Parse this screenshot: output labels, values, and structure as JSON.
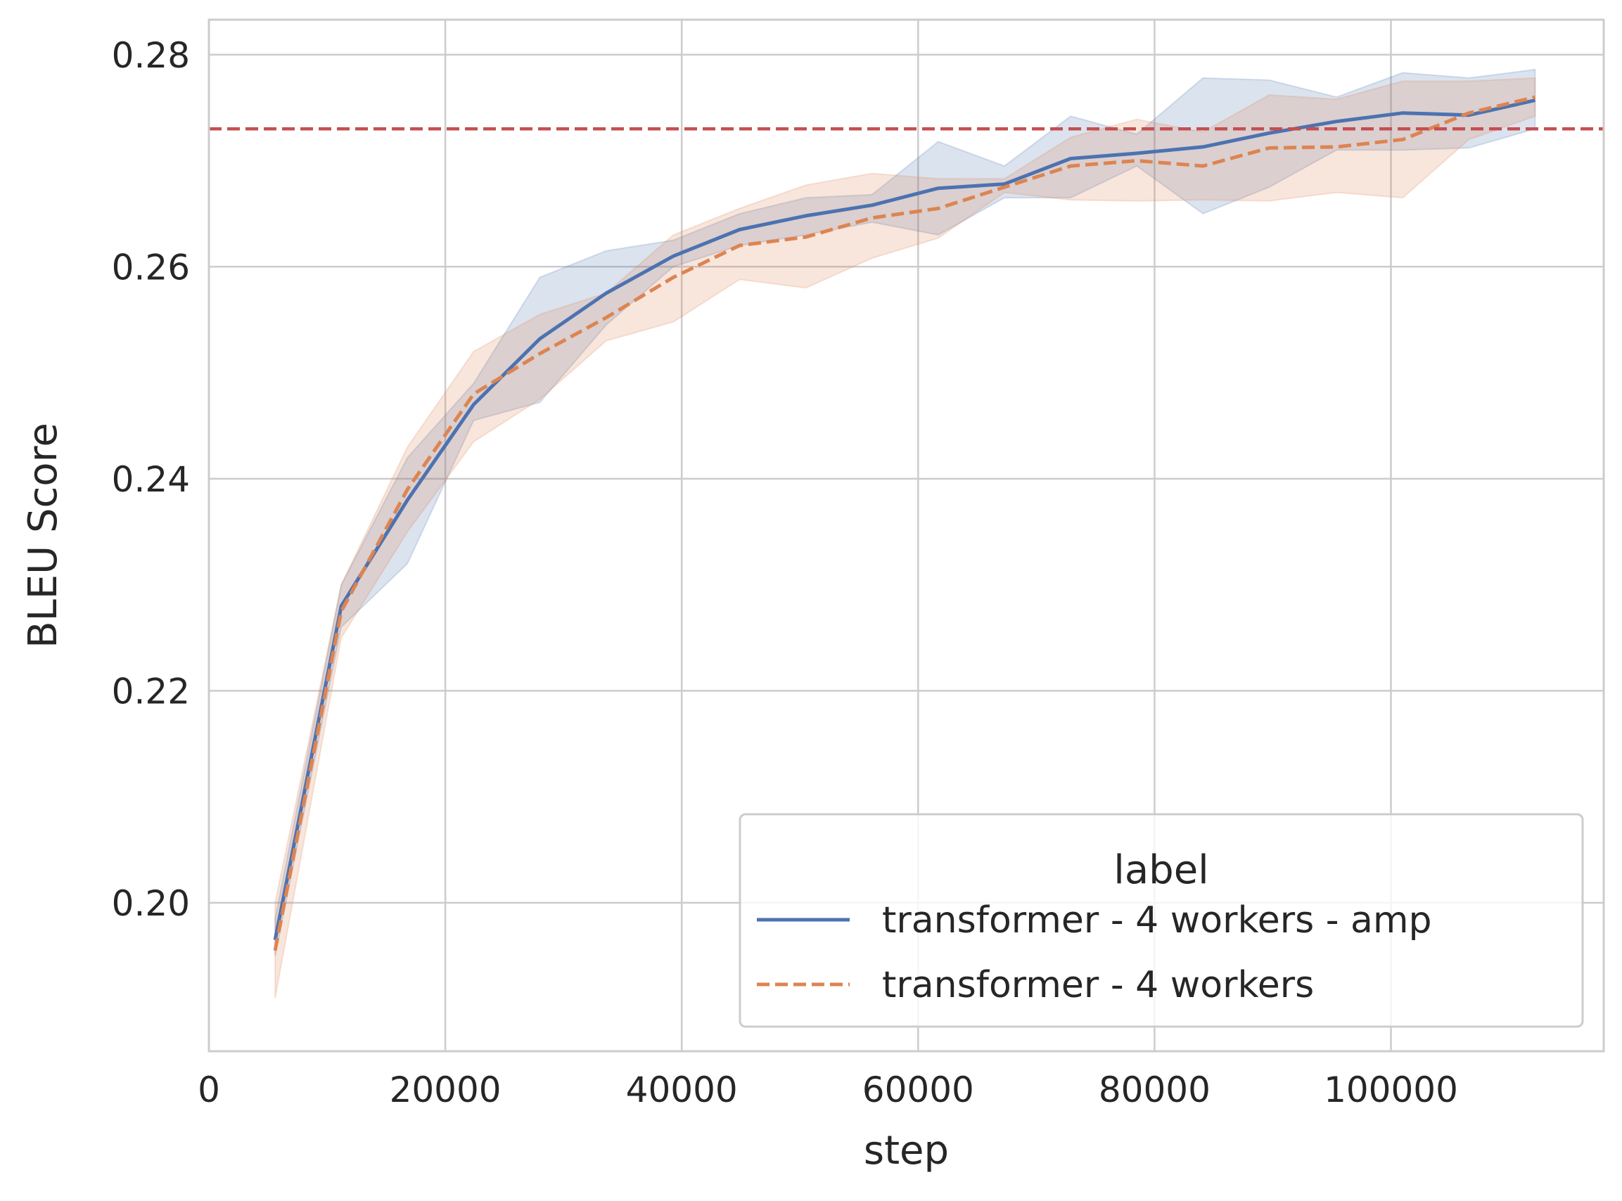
{
  "chart_data": {
    "type": "line",
    "xlabel": "step",
    "ylabel": "BLEU Score",
    "xlim": [
      0,
      118000
    ],
    "ylim": [
      0.186,
      0.2833
    ],
    "xticks": [
      0,
      20000,
      40000,
      60000,
      80000,
      100000
    ],
    "xtick_labels": [
      "0",
      "20000",
      "40000",
      "60000",
      "80000",
      "100000"
    ],
    "yticks": [
      0.2,
      0.22,
      0.24,
      0.26,
      0.28
    ],
    "ytick_labels": [
      "0.20",
      "0.22",
      "0.24",
      "0.26",
      "0.28"
    ],
    "grid": true,
    "reference_line": {
      "y": 0.273,
      "color": "#c44e52",
      "style": "dashed"
    },
    "legend": {
      "title": "label",
      "position": "lower right"
    },
    "series": [
      {
        "name": "transformer - 4 workers - amp",
        "color": "#4c72b0",
        "style": "solid",
        "x": [
          5600,
          11200,
          16800,
          22400,
          28000,
          33600,
          39300,
          44900,
          50500,
          56100,
          61700,
          67300,
          72900,
          78500,
          84100,
          89700,
          95400,
          101000,
          106600,
          112200
        ],
        "y": [
          0.1965,
          0.228,
          0.238,
          0.247,
          0.2532,
          0.2575,
          0.261,
          0.2635,
          0.2648,
          0.2658,
          0.2674,
          0.2678,
          0.2702,
          0.2707,
          0.2713,
          0.2726,
          0.2737,
          0.2745,
          0.2743,
          0.2757
        ],
        "y_lower": [
          0.195,
          0.226,
          0.232,
          0.2455,
          0.2472,
          0.2545,
          0.26,
          0.262,
          0.263,
          0.2642,
          0.263,
          0.2665,
          0.2665,
          0.2695,
          0.265,
          0.2675,
          0.271,
          0.271,
          0.2712,
          0.273
        ],
        "y_upper": [
          0.1985,
          0.23,
          0.242,
          0.249,
          0.259,
          0.2615,
          0.2625,
          0.265,
          0.2665,
          0.2668,
          0.2718,
          0.2695,
          0.2742,
          0.2725,
          0.2778,
          0.2776,
          0.276,
          0.2783,
          0.2778,
          0.2786
        ]
      },
      {
        "name": "transformer - 4 workers",
        "color": "#dd8452",
        "style": "dashed",
        "x": [
          5600,
          11200,
          16800,
          22400,
          28000,
          33600,
          39300,
          44900,
          50500,
          56100,
          61700,
          67300,
          72900,
          78500,
          84100,
          89700,
          95400,
          101000,
          106600,
          112200
        ],
        "y": [
          0.1955,
          0.2275,
          0.239,
          0.248,
          0.2518,
          0.2552,
          0.259,
          0.262,
          0.2628,
          0.2646,
          0.2655,
          0.2675,
          0.2695,
          0.27,
          0.2695,
          0.2712,
          0.2713,
          0.272,
          0.2745,
          0.276
        ],
        "y_lower": [
          0.191,
          0.225,
          0.235,
          0.2435,
          0.2475,
          0.253,
          0.2548,
          0.2588,
          0.258,
          0.2608,
          0.2627,
          0.267,
          0.2663,
          0.2662,
          0.2663,
          0.2662,
          0.267,
          0.2665,
          0.272,
          0.2742
        ],
        "y_upper": [
          0.2,
          0.23,
          0.243,
          0.252,
          0.2555,
          0.2575,
          0.263,
          0.2655,
          0.2677,
          0.2688,
          0.2683,
          0.2683,
          0.2722,
          0.2739,
          0.2727,
          0.2762,
          0.2758,
          0.2775,
          0.2775,
          0.2778
        ]
      }
    ]
  }
}
